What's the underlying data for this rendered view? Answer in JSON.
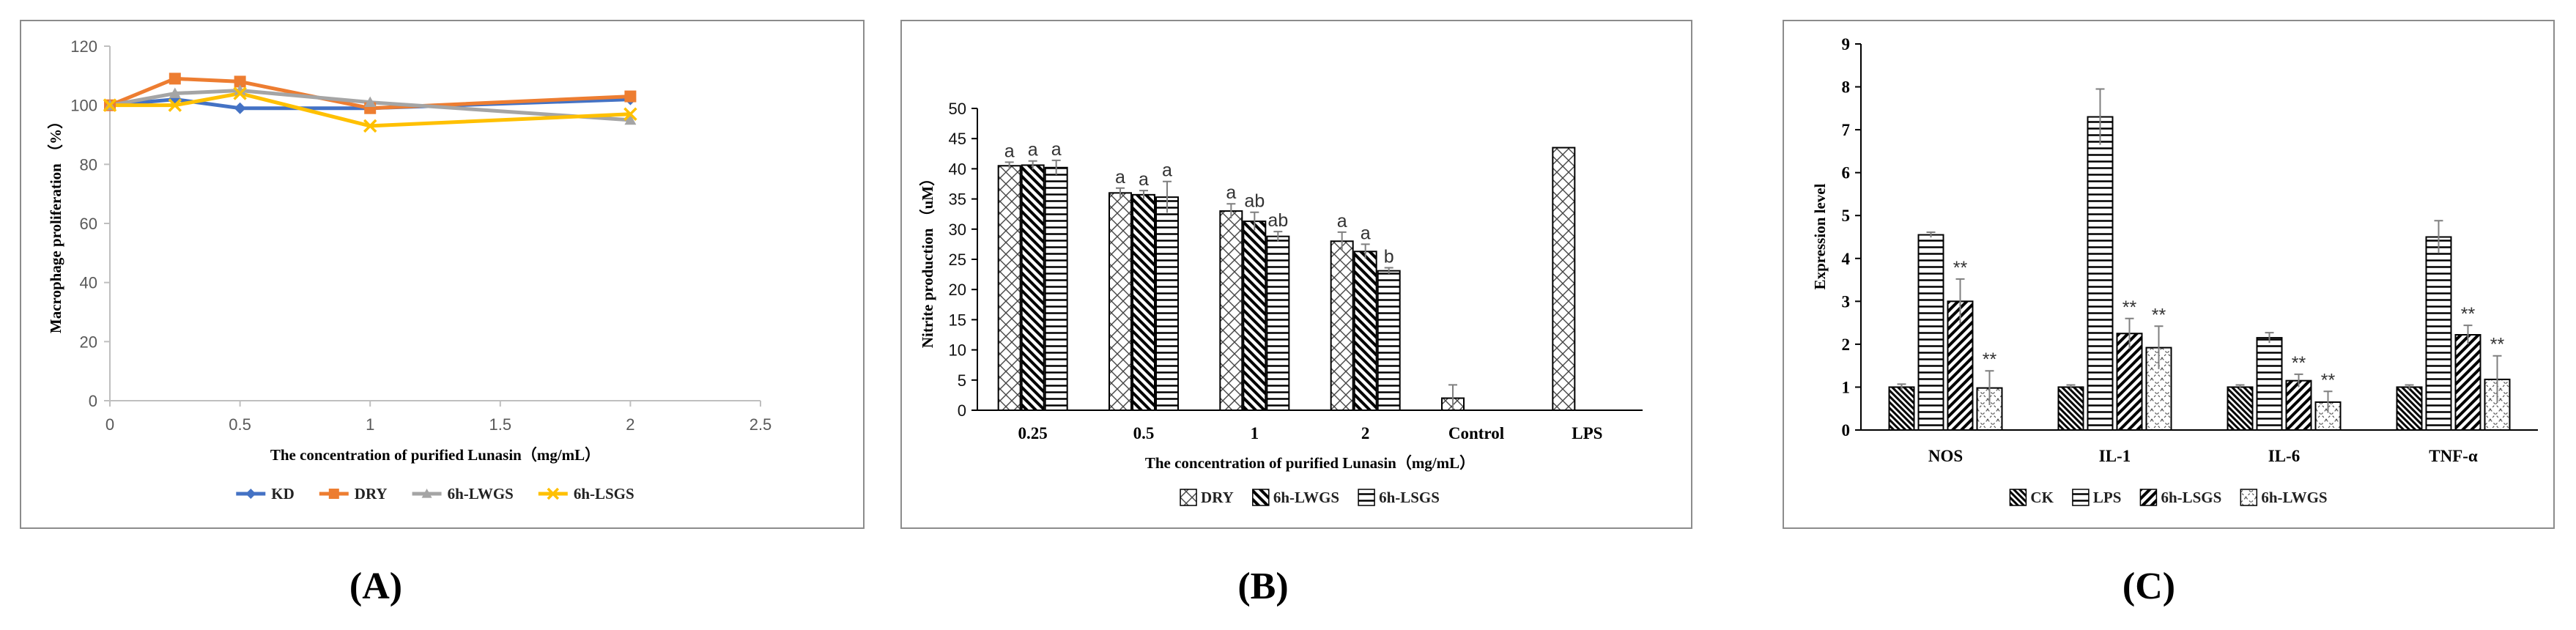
{
  "panel_labels": {
    "a": "(A)",
    "b": "(B)",
    "c": "(C)"
  },
  "chart_data": [
    {
      "id": "A",
      "type": "line",
      "title": "",
      "xlabel": "The concentration of purified Lunasin（mg/mL）",
      "ylabel": "Macrophage proliferation （%）",
      "xlim": [
        0,
        2.5
      ],
      "ylim": [
        0,
        120
      ],
      "xticks": [
        0,
        0.5,
        1,
        1.5,
        2,
        2.5
      ],
      "xtick_labels": [
        "0",
        "0.5",
        "1",
        "1.5",
        "2",
        "2.5"
      ],
      "yticks": [
        0,
        20,
        40,
        60,
        80,
        100,
        120
      ],
      "ytick_labels": [
        "0",
        "20",
        "40",
        "60",
        "80",
        "100",
        "120"
      ],
      "grid": false,
      "legend": "bottom",
      "x": [
        0,
        0.25,
        0.5,
        1,
        2
      ],
      "series": [
        {
          "name": "KD",
          "color": "#4472C4",
          "marker": "diamond",
          "values": [
            100,
            102,
            99,
            99,
            102
          ]
        },
        {
          "name": "DRY",
          "color": "#ED7D31",
          "marker": "square",
          "values": [
            100,
            109,
            108,
            99,
            103
          ]
        },
        {
          "name": "6h-LWGS",
          "color": "#A5A5A5",
          "marker": "triangle",
          "values": [
            100,
            104,
            105,
            101,
            95
          ]
        },
        {
          "name": "6h-LSGS",
          "color": "#FFC000",
          "marker": "x",
          "values": [
            100,
            100,
            104,
            93,
            97
          ]
        }
      ]
    },
    {
      "id": "B",
      "type": "bar",
      "title": "",
      "xlabel": "The concentration of purified Lunasin（mg/mL）",
      "ylabel": "Nitrite production （uM）",
      "ylim": [
        0,
        50
      ],
      "yticks": [
        0,
        5,
        10,
        15,
        20,
        25,
        30,
        35,
        40,
        45,
        50
      ],
      "ytick_labels": [
        "0",
        "5",
        "10",
        "15",
        "20",
        "25",
        "30",
        "35",
        "40",
        "45",
        "50"
      ],
      "grid": false,
      "legend": "bottom",
      "categories": [
        "0.25",
        "0.5",
        "1",
        "2",
        "Control",
        "LPS"
      ],
      "series": [
        {
          "name": "DRY",
          "pattern": "crosshatch",
          "values": [
            40.5,
            36,
            33,
            28,
            2,
            43.5
          ],
          "errors": [
            0.6,
            0.8,
            1.2,
            1.5,
            2.2,
            0
          ],
          "labels": [
            "a",
            "a",
            "a",
            "a",
            "",
            ""
          ]
        },
        {
          "name": "6h-LWGS",
          "pattern": "backslash",
          "values": [
            40.6,
            35.7,
            31.3,
            26.3,
            null,
            null
          ],
          "errors": [
            0.7,
            0.7,
            1.5,
            1.2,
            0,
            0
          ],
          "labels": [
            "a",
            "a",
            "ab",
            "a",
            "",
            ""
          ]
        },
        {
          "name": "6h-LSGS",
          "pattern": "horizontal",
          "values": [
            40.2,
            35.3,
            28.8,
            23.1,
            null,
            null
          ],
          "errors": [
            1.2,
            2.6,
            0.8,
            0.5,
            0,
            0
          ],
          "labels": [
            "a",
            "a",
            "ab",
            "b",
            "",
            ""
          ]
        }
      ]
    },
    {
      "id": "C",
      "type": "bar",
      "title": "",
      "xlabel": "",
      "ylabel": "Expression level",
      "ylim": [
        0,
        9
      ],
      "yticks": [
        0,
        1,
        2,
        3,
        4,
        5,
        6,
        7,
        8,
        9
      ],
      "ytick_labels": [
        "0",
        "1",
        "2",
        "3",
        "4",
        "5",
        "6",
        "7",
        "8",
        "9"
      ],
      "grid": false,
      "legend": "bottom",
      "categories": [
        "NOS",
        "IL-1",
        "IL-6",
        "TNF-α"
      ],
      "series": [
        {
          "name": "CK",
          "pattern": "backslash-dense",
          "values": [
            1.0,
            1.0,
            1.0,
            1.0
          ],
          "errors": [
            0.07,
            0.05,
            0.05,
            0.05
          ],
          "labels": [
            "",
            "",
            "",
            ""
          ]
        },
        {
          "name": "LPS",
          "pattern": "horizontal",
          "values": [
            4.55,
            7.3,
            2.15,
            4.5
          ],
          "errors": [
            0.06,
            0.65,
            0.12,
            0.38
          ],
          "labels": [
            "",
            "",
            "",
            ""
          ]
        },
        {
          "name": "6h-LSGS",
          "pattern": "slash",
          "values": [
            3.0,
            2.25,
            1.15,
            2.22
          ],
          "errors": [
            0.52,
            0.35,
            0.15,
            0.22
          ],
          "labels": [
            "**",
            "**",
            "**",
            "**"
          ]
        },
        {
          "name": "6h-LWGS",
          "pattern": "light-crosshatch",
          "values": [
            0.98,
            1.92,
            0.65,
            1.18
          ],
          "errors": [
            0.4,
            0.5,
            0.25,
            0.55
          ],
          "labels": [
            "**",
            "**",
            "**",
            "**"
          ]
        }
      ]
    }
  ]
}
